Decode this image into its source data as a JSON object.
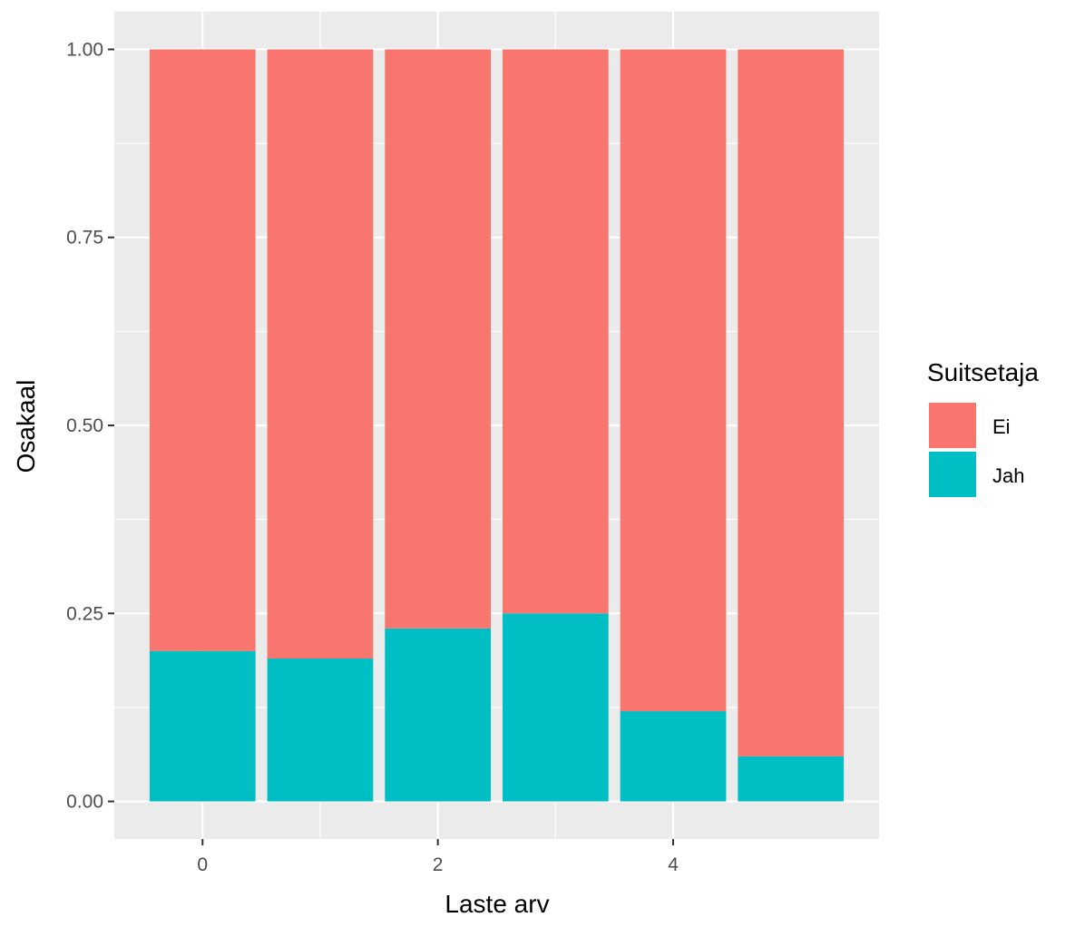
{
  "chart_data": {
    "type": "bar",
    "stacked": true,
    "position": "fill",
    "categories": [
      0,
      1,
      2,
      3,
      4,
      5
    ],
    "series": [
      {
        "name": "Jah",
        "color": "#00BFC4",
        "values": [
          0.2,
          0.19,
          0.23,
          0.25,
          0.12,
          0.06
        ]
      },
      {
        "name": "Ei",
        "color": "#F8766D",
        "values": [
          0.8,
          0.81,
          0.77,
          0.75,
          0.88,
          0.94
        ]
      }
    ],
    "xlabel": "Laste arv",
    "ylabel": "Osakaal",
    "x_ticks": [
      "0",
      "2",
      "4"
    ],
    "x_tick_values": [
      0,
      2,
      4
    ],
    "y_ticks": [
      "0.00",
      "0.25",
      "0.50",
      "0.75",
      "1.00"
    ],
    "y_tick_values": [
      0,
      0.25,
      0.5,
      0.75,
      1.0
    ],
    "xlim": [
      -0.75,
      5.75
    ],
    "ylim": [
      -0.05,
      1.05
    ],
    "grid": true,
    "panel_color": "#EBEBEB",
    "legend": {
      "title": "Suitsetaja",
      "position": "right",
      "entries": [
        {
          "label": "Ei",
          "color": "#F8766D"
        },
        {
          "label": "Jah",
          "color": "#00BFC4"
        }
      ]
    }
  }
}
